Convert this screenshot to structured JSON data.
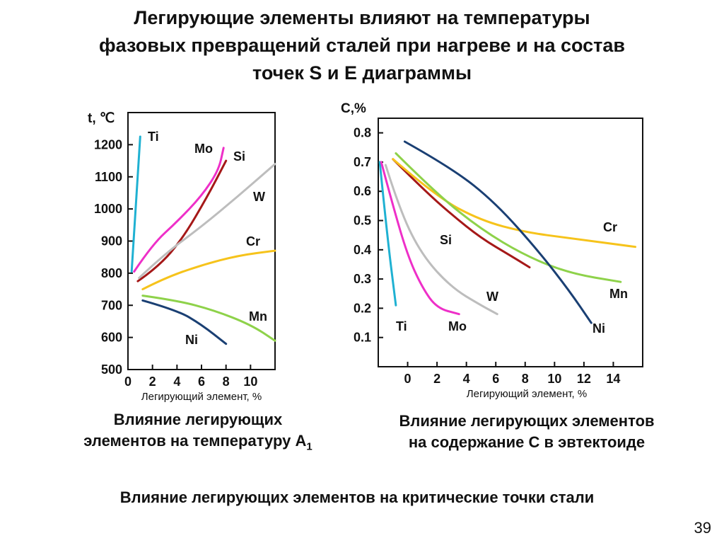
{
  "title": {
    "lines": [
      "Легирующие элементы влияют на температуры",
      "фазовых превращений сталей при нагреве и на состав",
      "точек S и E диаграммы"
    ]
  },
  "caption_left": {
    "line1": "Влияние легирующих",
    "line2": "элементов на температуру А",
    "sub": "1"
  },
  "caption_right": {
    "line1": "Влияние легирующих элементов",
    "line2": "на содержание С в эвтектоиде"
  },
  "bottom_caption": "Влияние легирующих элементов на критические точки стали",
  "page_number": "39",
  "chart_data": [
    {
      "type": "line",
      "ylabel": "t, ℃",
      "xlabel": "Легирующий элемент, %",
      "xlim": [
        0,
        12
      ],
      "ylim": [
        500,
        1300
      ],
      "xticks": [
        0,
        2,
        4,
        6,
        8,
        10
      ],
      "yticks": [
        500,
        600,
        700,
        800,
        900,
        1000,
        1100,
        1200
      ],
      "grid": false,
      "series": [
        {
          "name": "Ti",
          "color": "#1fb1d2",
          "x": [
            0.3,
            1.0
          ],
          "y": [
            805,
            1225
          ]
        },
        {
          "name": "Mo",
          "color": "#ee2fc8",
          "x": [
            0.5,
            2,
            4,
            6,
            7.4,
            7.8
          ],
          "y": [
            805,
            890,
            960,
            1040,
            1120,
            1190
          ]
        },
        {
          "name": "Si",
          "color": "#a51818",
          "x": [
            0.8,
            2.5,
            4.5,
            6.5,
            8.0
          ],
          "y": [
            775,
            820,
            910,
            1040,
            1150
          ]
        },
        {
          "name": "W",
          "color": "#bdbdbd",
          "x": [
            0.9,
            3,
            6,
            9,
            12
          ],
          "y": [
            785,
            860,
            945,
            1040,
            1140
          ]
        },
        {
          "name": "Cr",
          "color": "#f6c31b",
          "x": [
            1.2,
            3,
            6,
            9,
            12
          ],
          "y": [
            750,
            785,
            825,
            855,
            870
          ]
        },
        {
          "name": "Mn",
          "color": "#8ed24a",
          "x": [
            1.2,
            4,
            7,
            10,
            12
          ],
          "y": [
            730,
            715,
            685,
            640,
            590
          ]
        },
        {
          "name": "Ni",
          "color": "#1a3f73",
          "x": [
            1.2,
            4,
            6,
            8
          ],
          "y": [
            715,
            685,
            640,
            580
          ]
        }
      ]
    },
    {
      "type": "line",
      "ylabel": "C,%",
      "xlabel": "Легирующий элемент, %",
      "xlim": [
        -2,
        16
      ],
      "ylim": [
        0,
        0.85
      ],
      "xticks": [
        0,
        2,
        4,
        6,
        8,
        10,
        12,
        14
      ],
      "yticks": [
        0.1,
        0.2,
        0.3,
        0.4,
        0.5,
        0.6,
        0.7,
        0.8
      ],
      "grid": false,
      "series": [
        {
          "name": "Ti",
          "color": "#1fb1d2",
          "x": [
            -1.9,
            -1.4,
            -0.8
          ],
          "y": [
            0.7,
            0.45,
            0.21
          ]
        },
        {
          "name": "Mo",
          "color": "#ee2fc8",
          "x": [
            -1.8,
            -1,
            0,
            1,
            2,
            3.5
          ],
          "y": [
            0.7,
            0.55,
            0.38,
            0.27,
            0.2,
            0.18
          ]
        },
        {
          "name": "W",
          "color": "#bdbdbd",
          "x": [
            -1.5,
            -0.5,
            1,
            3,
            5,
            6.1
          ],
          "y": [
            0.69,
            0.53,
            0.38,
            0.27,
            0.21,
            0.18
          ]
        },
        {
          "name": "Si",
          "color": "#a51818",
          "x": [
            -1.0,
            1,
            3,
            5,
            7,
            8.3
          ],
          "y": [
            0.71,
            0.61,
            0.52,
            0.44,
            0.38,
            0.34
          ]
        },
        {
          "name": "Cr",
          "color": "#f6c31b",
          "x": [
            -1.0,
            2,
            5,
            8,
            11,
            15.5
          ],
          "y": [
            0.71,
            0.58,
            0.5,
            0.46,
            0.44,
            0.41
          ]
        },
        {
          "name": "Mn",
          "color": "#8ed24a",
          "x": [
            -0.8,
            2,
            5,
            8,
            11,
            14.5
          ],
          "y": [
            0.73,
            0.59,
            0.47,
            0.38,
            0.32,
            0.29
          ]
        },
        {
          "name": "Ni",
          "color": "#1a3f73",
          "x": [
            -0.2,
            3,
            6,
            9,
            11,
            12.5
          ],
          "y": [
            0.77,
            0.68,
            0.56,
            0.39,
            0.26,
            0.15
          ]
        }
      ]
    }
  ]
}
